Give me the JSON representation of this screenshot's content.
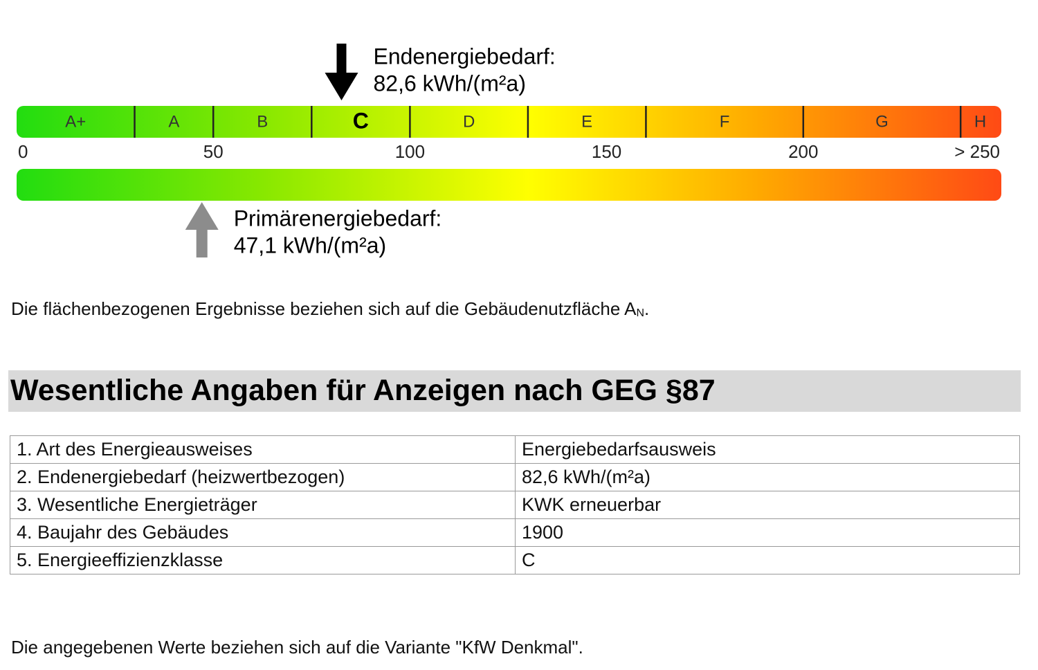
{
  "energy_scale": {
    "ticks": [
      0,
      50,
      100,
      150,
      200,
      {
        "value": 250,
        "label": "> 250"
      }
    ],
    "classes": [
      {
        "label": "A+",
        "upper": 30
      },
      {
        "label": "A",
        "upper": 50
      },
      {
        "label": "B",
        "upper": 75
      },
      {
        "label": "C",
        "upper": 100
      },
      {
        "label": "D",
        "upper": 130
      },
      {
        "label": "E",
        "upper": 160
      },
      {
        "label": "F",
        "upper": 200
      },
      {
        "label": "G",
        "upper": 240
      },
      {
        "label": "H"
      }
    ],
    "final_energy": {
      "title": "Endenergiebedarf:",
      "value": 82.6,
      "value_label": "82,6 kWh/(m²a)"
    },
    "primary_energy": {
      "title": "Primärenergiebedarf:",
      "value": 47.1,
      "value_label": "47,1 kWh/(m²a)"
    }
  },
  "area_note": {
    "text": "Die flächenbezogenen Ergebnisse beziehen sich auf die Gebäudenutzfläche A",
    "subscript": "N",
    "end": "."
  },
  "section": {
    "title": "Wesentliche Angaben für Anzeigen nach GEG §87"
  },
  "table": {
    "rows": [
      [
        "1. Art des Energieausweises",
        "Energiebedarfsausweis"
      ],
      [
        "2. Endenergiebedarf (heizwertbezogen)",
        "82,6 kWh/(m²a)"
      ],
      [
        "3. Wesentliche Energieträger",
        "KWK erneuerbar"
      ],
      [
        "4. Baujahr des Gebäudes",
        "1900"
      ],
      [
        "5. Energieeffizienzklasse",
        "C"
      ]
    ]
  },
  "footer_note": "Die angegebenen Werte beziehen sich auf die Variante \"KfW Denkmal\"."
}
